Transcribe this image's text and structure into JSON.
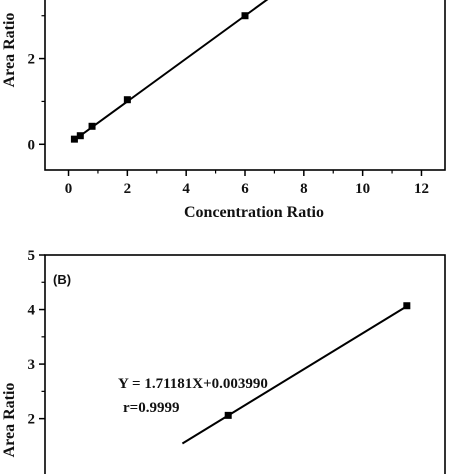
{
  "chart_data": [
    {
      "panel_label": "",
      "type": "scatter",
      "fit_line": true,
      "xlabel": "Concentration Ratio",
      "ylabel": "Area Ratio",
      "x_ticks": [
        0,
        2,
        4,
        6,
        8,
        10,
        12
      ],
      "y_ticks": [
        0,
        2
      ],
      "xlim": [
        -0.8,
        12.8
      ],
      "ylim": [
        -0.6,
        3.6
      ],
      "points": [
        {
          "x": 0.2,
          "y": 0.12
        },
        {
          "x": 0.4,
          "y": 0.2
        },
        {
          "x": 0.8,
          "y": 0.42
        },
        {
          "x": 2.0,
          "y": 1.04
        },
        {
          "x": 6.0,
          "y": 3.0
        }
      ],
      "line": {
        "slope": 0.5,
        "intercept": 0.0
      }
    },
    {
      "panel_label": "(B)",
      "type": "scatter",
      "fit_line": true,
      "xlabel": "",
      "ylabel": "Area Ratio",
      "y_ticks": [
        2,
        3,
        4,
        5
      ],
      "ylim": [
        0.6,
        5.0
      ],
      "points": [
        {
          "x": 1.2,
          "y": 2.06
        },
        {
          "x": 2.37,
          "y": 4.07
        }
      ],
      "line": {
        "slope": 1.71181,
        "intercept": 0.00399
      },
      "annotations": [
        "Y = 1.71181X+0.003990",
        "r=0.9999"
      ]
    }
  ]
}
